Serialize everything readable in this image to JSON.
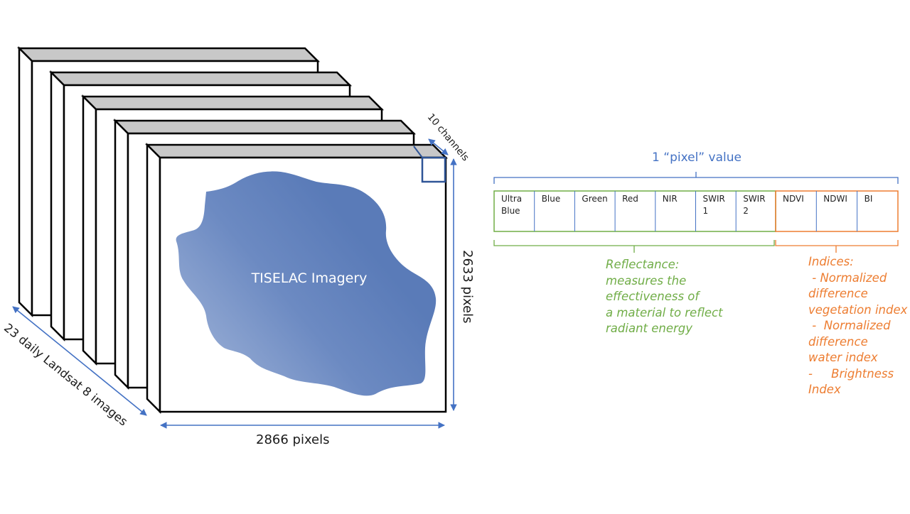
{
  "labels": {
    "imagery": "TISELAC Imagery",
    "width": "2866 pixels",
    "height": "2633 pixels",
    "channels": "10 channels",
    "stack": "23 daily Landsat 8 images",
    "pixel_value": "1 “pixel” value"
  },
  "bands": {
    "reflectance": [
      "Ultra\nBlue",
      "Blue",
      "Green",
      "Red",
      "NIR",
      "SWIR\n1",
      "SWIR\n2"
    ],
    "indices": [
      "NDVI",
      "NDWI",
      "BI"
    ]
  },
  "notes": {
    "reflectance": "Reflectance:\nmeasures the\neffectiveness of\na material to reflect\nradiant energy",
    "indices": "Indices:\n - Normalized\ndifference\nvegetation index\n -  Normalized\ndifference\nwater index\n-     Brightness\nIndex"
  },
  "colors": {
    "reflectance": "#70ad47",
    "indices": "#ed7d31",
    "accent": "#4472c4",
    "island_light": "#9aafd6",
    "island_dark": "#5a7bb8"
  }
}
